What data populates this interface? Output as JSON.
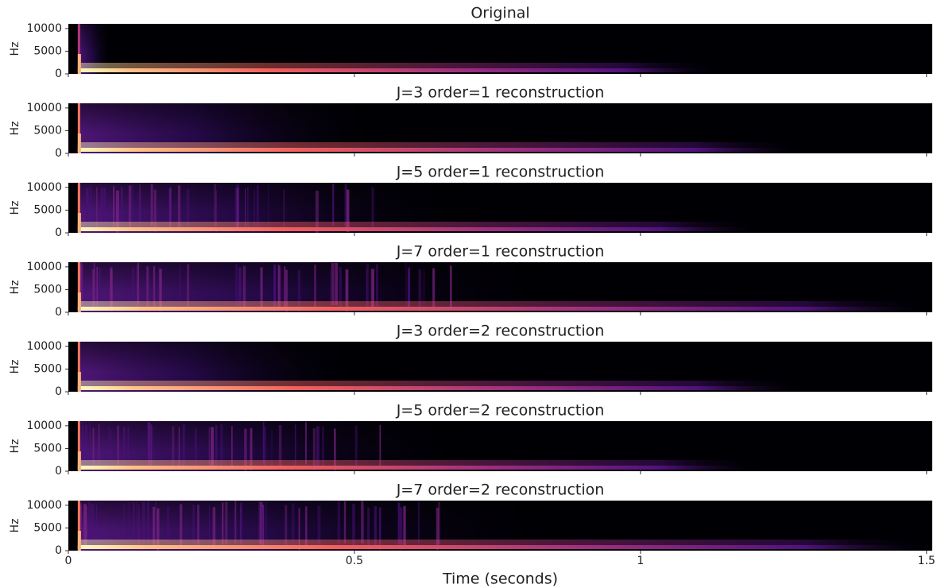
{
  "chart_data": [
    {
      "type": "spectrogram",
      "title": "Original",
      "ylabel": "Hz",
      "ylim": [
        0,
        11025
      ],
      "yticks": [
        0,
        5000,
        10000
      ],
      "xlim": [
        0,
        1.51
      ]
    },
    {
      "type": "spectrogram",
      "title": "J=3 order=1 reconstruction",
      "ylabel": "Hz",
      "ylim": [
        0,
        11025
      ],
      "yticks": [
        0,
        5000,
        10000
      ],
      "xlim": [
        0,
        1.51
      ]
    },
    {
      "type": "spectrogram",
      "title": "J=5 order=1 reconstruction",
      "ylabel": "Hz",
      "ylim": [
        0,
        11025
      ],
      "yticks": [
        0,
        5000,
        10000
      ],
      "xlim": [
        0,
        1.51
      ]
    },
    {
      "type": "spectrogram",
      "title": "J=7 order=1 reconstruction",
      "ylabel": "Hz",
      "ylim": [
        0,
        11025
      ],
      "yticks": [
        0,
        5000,
        10000
      ],
      "xlim": [
        0,
        1.51
      ]
    },
    {
      "type": "spectrogram",
      "title": "J=3 order=2 reconstruction",
      "ylabel": "Hz",
      "ylim": [
        0,
        11025
      ],
      "yticks": [
        0,
        5000,
        10000
      ],
      "xlim": [
        0,
        1.51
      ]
    },
    {
      "type": "spectrogram",
      "title": "J=5 order=2 reconstruction",
      "ylabel": "Hz",
      "ylim": [
        0,
        11025
      ],
      "yticks": [
        0,
        5000,
        10000
      ],
      "xlim": [
        0,
        1.51
      ]
    },
    {
      "type": "spectrogram",
      "title": "J=7 order=2 reconstruction",
      "ylabel": "Hz",
      "ylim": [
        0,
        11025
      ],
      "yticks": [
        0,
        5000,
        10000
      ],
      "xlim": [
        0,
        1.51
      ],
      "xticks": [
        0,
        0.5,
        1,
        1.5
      ],
      "xlabel": "Time (seconds)"
    }
  ]
}
